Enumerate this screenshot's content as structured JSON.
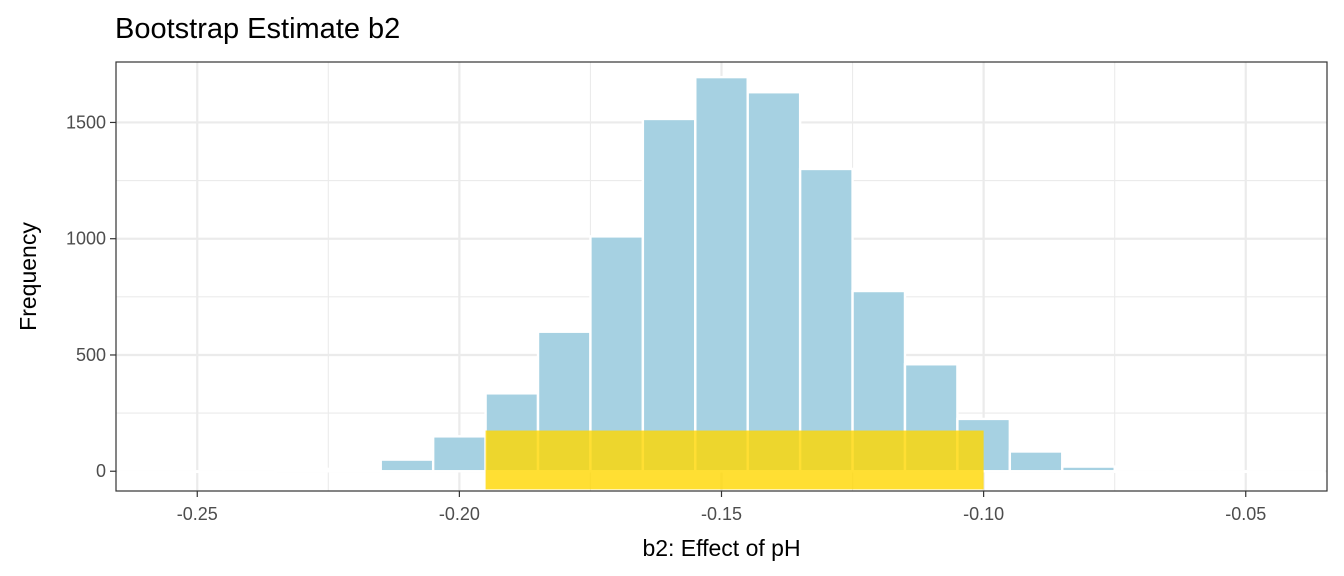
{
  "chart_data": {
    "type": "bar",
    "title": "Bootstrap Estimate b2",
    "xlabel": "b2: Effect of pH",
    "ylabel": "Frequency",
    "xlim": [
      -0.2655,
      -0.0345
    ],
    "ylim": [
      -85,
      1760
    ],
    "grid": true,
    "x_ticks": [
      {
        "value": -0.25,
        "label": "-0.25"
      },
      {
        "value": -0.2,
        "label": "-0.20"
      },
      {
        "value": -0.15,
        "label": "-0.15"
      },
      {
        "value": -0.1,
        "label": "-0.10"
      },
      {
        "value": -0.05,
        "label": "-0.05"
      }
    ],
    "y_ticks": [
      {
        "value": 0,
        "label": "0"
      },
      {
        "value": 500,
        "label": "500"
      },
      {
        "value": 1000,
        "label": "1000"
      },
      {
        "value": 1500,
        "label": "1500"
      }
    ],
    "bin_width": 0.01,
    "bins": [
      {
        "x": -0.26,
        "count": 0
      },
      {
        "x": -0.25,
        "count": 0
      },
      {
        "x": -0.24,
        "count": 0
      },
      {
        "x": -0.23,
        "count": 5
      },
      {
        "x": -0.22,
        "count": 10
      },
      {
        "x": -0.21,
        "count": 50
      },
      {
        "x": -0.2,
        "count": 150
      },
      {
        "x": -0.19,
        "count": 335
      },
      {
        "x": -0.18,
        "count": 600
      },
      {
        "x": -0.17,
        "count": 1010
      },
      {
        "x": -0.16,
        "count": 1515
      },
      {
        "x": -0.15,
        "count": 1695
      },
      {
        "x": -0.14,
        "count": 1630
      },
      {
        "x": -0.13,
        "count": 1300
      },
      {
        "x": -0.12,
        "count": 775
      },
      {
        "x": -0.11,
        "count": 460
      },
      {
        "x": -0.1,
        "count": 225
      },
      {
        "x": -0.09,
        "count": 85
      },
      {
        "x": -0.08,
        "count": 20
      },
      {
        "x": -0.07,
        "count": 0
      },
      {
        "x": -0.06,
        "count": 0
      },
      {
        "x": -0.05,
        "count": 0
      },
      {
        "x": -0.04,
        "count": 0
      }
    ],
    "highlight_interval": {
      "xmin": -0.195,
      "xmax": -0.1,
      "ymin": -78,
      "ymax": 175
    },
    "colors": {
      "bar_fill": "#a6d1e2",
      "bar_border": "#ffffff",
      "highlight": "#ffd700",
      "grid": "#ebebeb",
      "panel_border": "#333333"
    }
  }
}
